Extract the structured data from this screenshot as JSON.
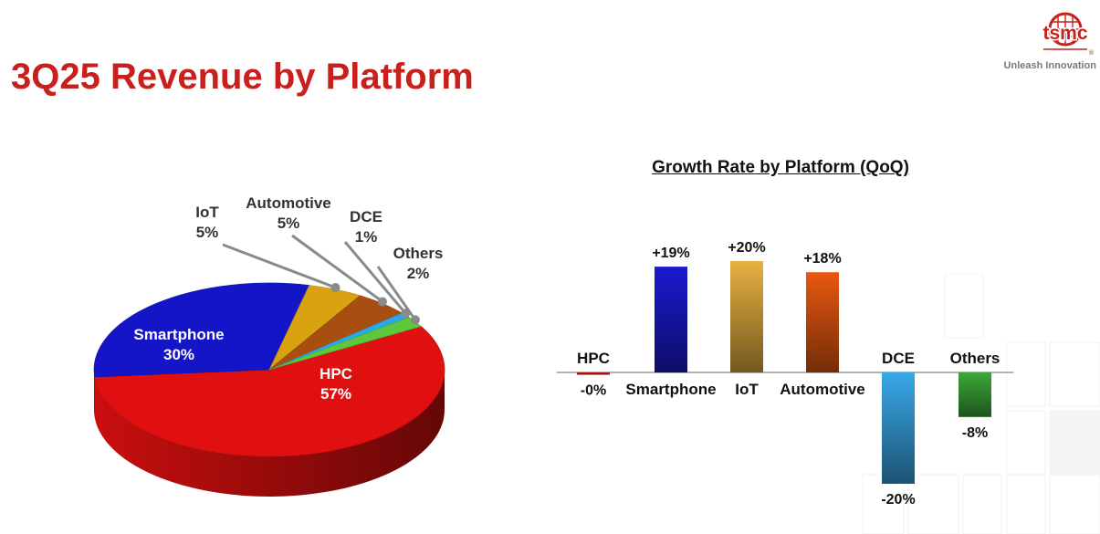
{
  "slide": {
    "title": "3Q25 Revenue by Platform"
  },
  "logo": {
    "wordmark": "tsmc",
    "tagline": "Unleash Innovation",
    "registered_mark": "®",
    "color": "#c8201c"
  },
  "chart_data": [
    {
      "type": "pie",
      "title": "",
      "slices": [
        {
          "label": "HPC",
          "value": 57,
          "display": "57%",
          "color": "#e01010"
        },
        {
          "label": "Smartphone",
          "value": 30,
          "display": "30%",
          "color": "#1515c8"
        },
        {
          "label": "IoT",
          "value": 5,
          "display": "5%",
          "color": "#d8a210"
        },
        {
          "label": "Automotive",
          "value": 5,
          "display": "5%",
          "color": "#a84e10"
        },
        {
          "label": "DCE",
          "value": 1,
          "display": "1%",
          "color": "#2aa8e8"
        },
        {
          "label": "Others",
          "value": 2,
          "display": "2%",
          "color": "#5cc83c"
        }
      ]
    },
    {
      "type": "bar",
      "title": "Growth Rate by Platform (QoQ)",
      "categories": [
        "HPC",
        "Smartphone",
        "IoT",
        "Automotive",
        "DCE",
        "Others"
      ],
      "values": [
        -0.3,
        19,
        20,
        18,
        -20,
        -8
      ],
      "value_labels": [
        "-0%",
        "+19%",
        "+20%",
        "+18%",
        "-20%",
        "-8%"
      ],
      "colors": [
        "#d01a1a",
        "#1a1ad0",
        "#e8b040",
        "#e85810",
        "#38a8e8",
        "#3ca838"
      ],
      "ylim": [
        -20,
        20
      ]
    }
  ]
}
